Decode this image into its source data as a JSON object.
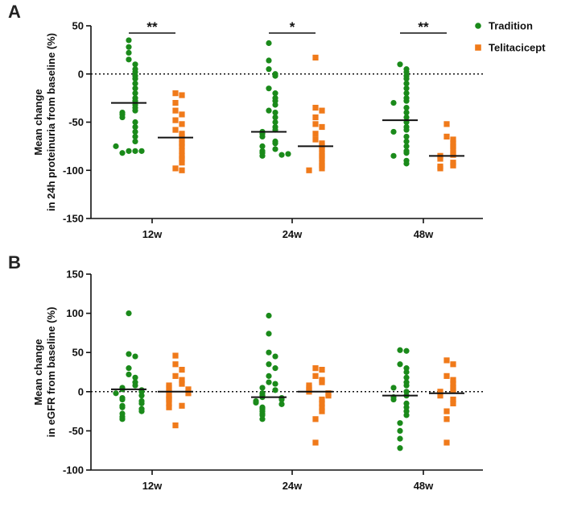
{
  "colors": {
    "tradition": "#1a8a1a",
    "telitacicept": "#f07a1a",
    "axis": "#111111"
  },
  "legend": [
    {
      "name": "Tradition",
      "marker": "circle",
      "color": "#1a8a1a"
    },
    {
      "name": "Telitacicept",
      "marker": "square",
      "color": "#f07a1a"
    }
  ],
  "chart_data": [
    {
      "type": "scatter",
      "panel_label": "A",
      "ylabel": [
        "Mean change",
        "in 24h proteinuria from baseline (%)"
      ],
      "ylim": [
        -150,
        50
      ],
      "yticks": [
        50,
        0,
        -50,
        -100,
        -150
      ],
      "reference_line": 0,
      "categories": [
        "12w",
        "24w",
        "48w"
      ],
      "significance": [
        "**",
        "*",
        "**"
      ],
      "series": [
        {
          "name": "Tradition",
          "medians": [
            -30,
            -60,
            -48
          ],
          "values": [
            [
              35,
              28,
              22,
              15,
              10,
              5,
              2,
              -2,
              -5,
              -10,
              -15,
              -20,
              -25,
              -28,
              -32,
              -35,
              -38,
              -40,
              -42,
              -45,
              -50,
              -55,
              -60,
              -65,
              -70,
              -80,
              -80,
              -82,
              -80,
              -75
            ],
            [
              32,
              14,
              5,
              0,
              -2,
              -15,
              -20,
              -25,
              -28,
              -32,
              -38,
              -40,
              -45,
              -50,
              -55,
              -58,
              -60,
              -62,
              -65,
              -70,
              -72,
              -75,
              -78,
              -80,
              -82,
              -85,
              -84,
              -83
            ],
            [
              10,
              5,
              2,
              -2,
              -5,
              -10,
              -15,
              -20,
              -25,
              -28,
              -30,
              -35,
              -40,
              -45,
              -50,
              -55,
              -58,
              -60,
              -65,
              -70,
              -75,
              -80,
              -82,
              -85,
              -90,
              -93
            ]
          ]
        },
        {
          "name": "Telitacicept",
          "medians": [
            -66,
            -75,
            -85
          ],
          "values": [
            [
              -20,
              -22,
              -30,
              -38,
              -42,
              -48,
              -52,
              -58,
              -62,
              -65,
              -68,
              -72,
              -75,
              -80,
              -85,
              -88,
              -92,
              -98,
              -100
            ],
            [
              17,
              -35,
              -38,
              -45,
              -52,
              -55,
              -62,
              -68,
              -72,
              -75,
              -78,
              -82,
              -85,
              -88,
              -92,
              -95,
              -98,
              -100
            ],
            [
              -52,
              -65,
              -68,
              -72,
              -75,
              -78,
              -82,
              -84,
              -85,
              -88,
              -92,
              -95,
              -96,
              -98
            ]
          ]
        }
      ]
    },
    {
      "type": "scatter",
      "panel_label": "B",
      "ylabel": [
        "Mean change",
        "in eGFR from baseline (%)"
      ],
      "ylim": [
        -100,
        150
      ],
      "yticks": [
        150,
        100,
        50,
        0,
        -50,
        -100
      ],
      "reference_line": 0,
      "categories": [
        "12w",
        "24w",
        "48w"
      ],
      "series": [
        {
          "name": "Tradition",
          "medians": [
            3,
            -7,
            -5
          ],
          "values": [
            [
              100,
              48,
              45,
              30,
              22,
              18,
              12,
              8,
              5,
              3,
              2,
              0,
              -2,
              -5,
              -8,
              -10,
              -12,
              -15,
              -18,
              -20,
              -22,
              -25,
              -28,
              -32,
              -35
            ],
            [
              97,
              74,
              50,
              45,
              35,
              30,
              20,
              12,
              10,
              5,
              2,
              -2,
              -5,
              -7,
              -8,
              -10,
              -12,
              -14,
              -16,
              -20,
              -22,
              -25,
              -28,
              -30,
              -35
            ],
            [
              53,
              52,
              35,
              30,
              25,
              18,
              12,
              8,
              5,
              0,
              -5,
              -7,
              -10,
              -15,
              -20,
              -25,
              -30,
              -40,
              -50,
              -60,
              -72
            ]
          ]
        },
        {
          "name": "Telitacicept",
          "medians": [
            0,
            0,
            -2
          ],
          "values": [
            [
              46,
              35,
              28,
              20,
              15,
              10,
              8,
              5,
              3,
              0,
              -2,
              -5,
              -8,
              -10,
              -15,
              -18,
              -20,
              -43
            ],
            [
              30,
              28,
              20,
              15,
              12,
              8,
              5,
              2,
              0,
              -2,
              -5,
              -10,
              -15,
              -20,
              -25,
              -35,
              -65
            ],
            [
              40,
              35,
              20,
              15,
              10,
              5,
              2,
              0,
              -5,
              -10,
              -15,
              -25,
              -35,
              -65
            ]
          ]
        }
      ]
    }
  ]
}
